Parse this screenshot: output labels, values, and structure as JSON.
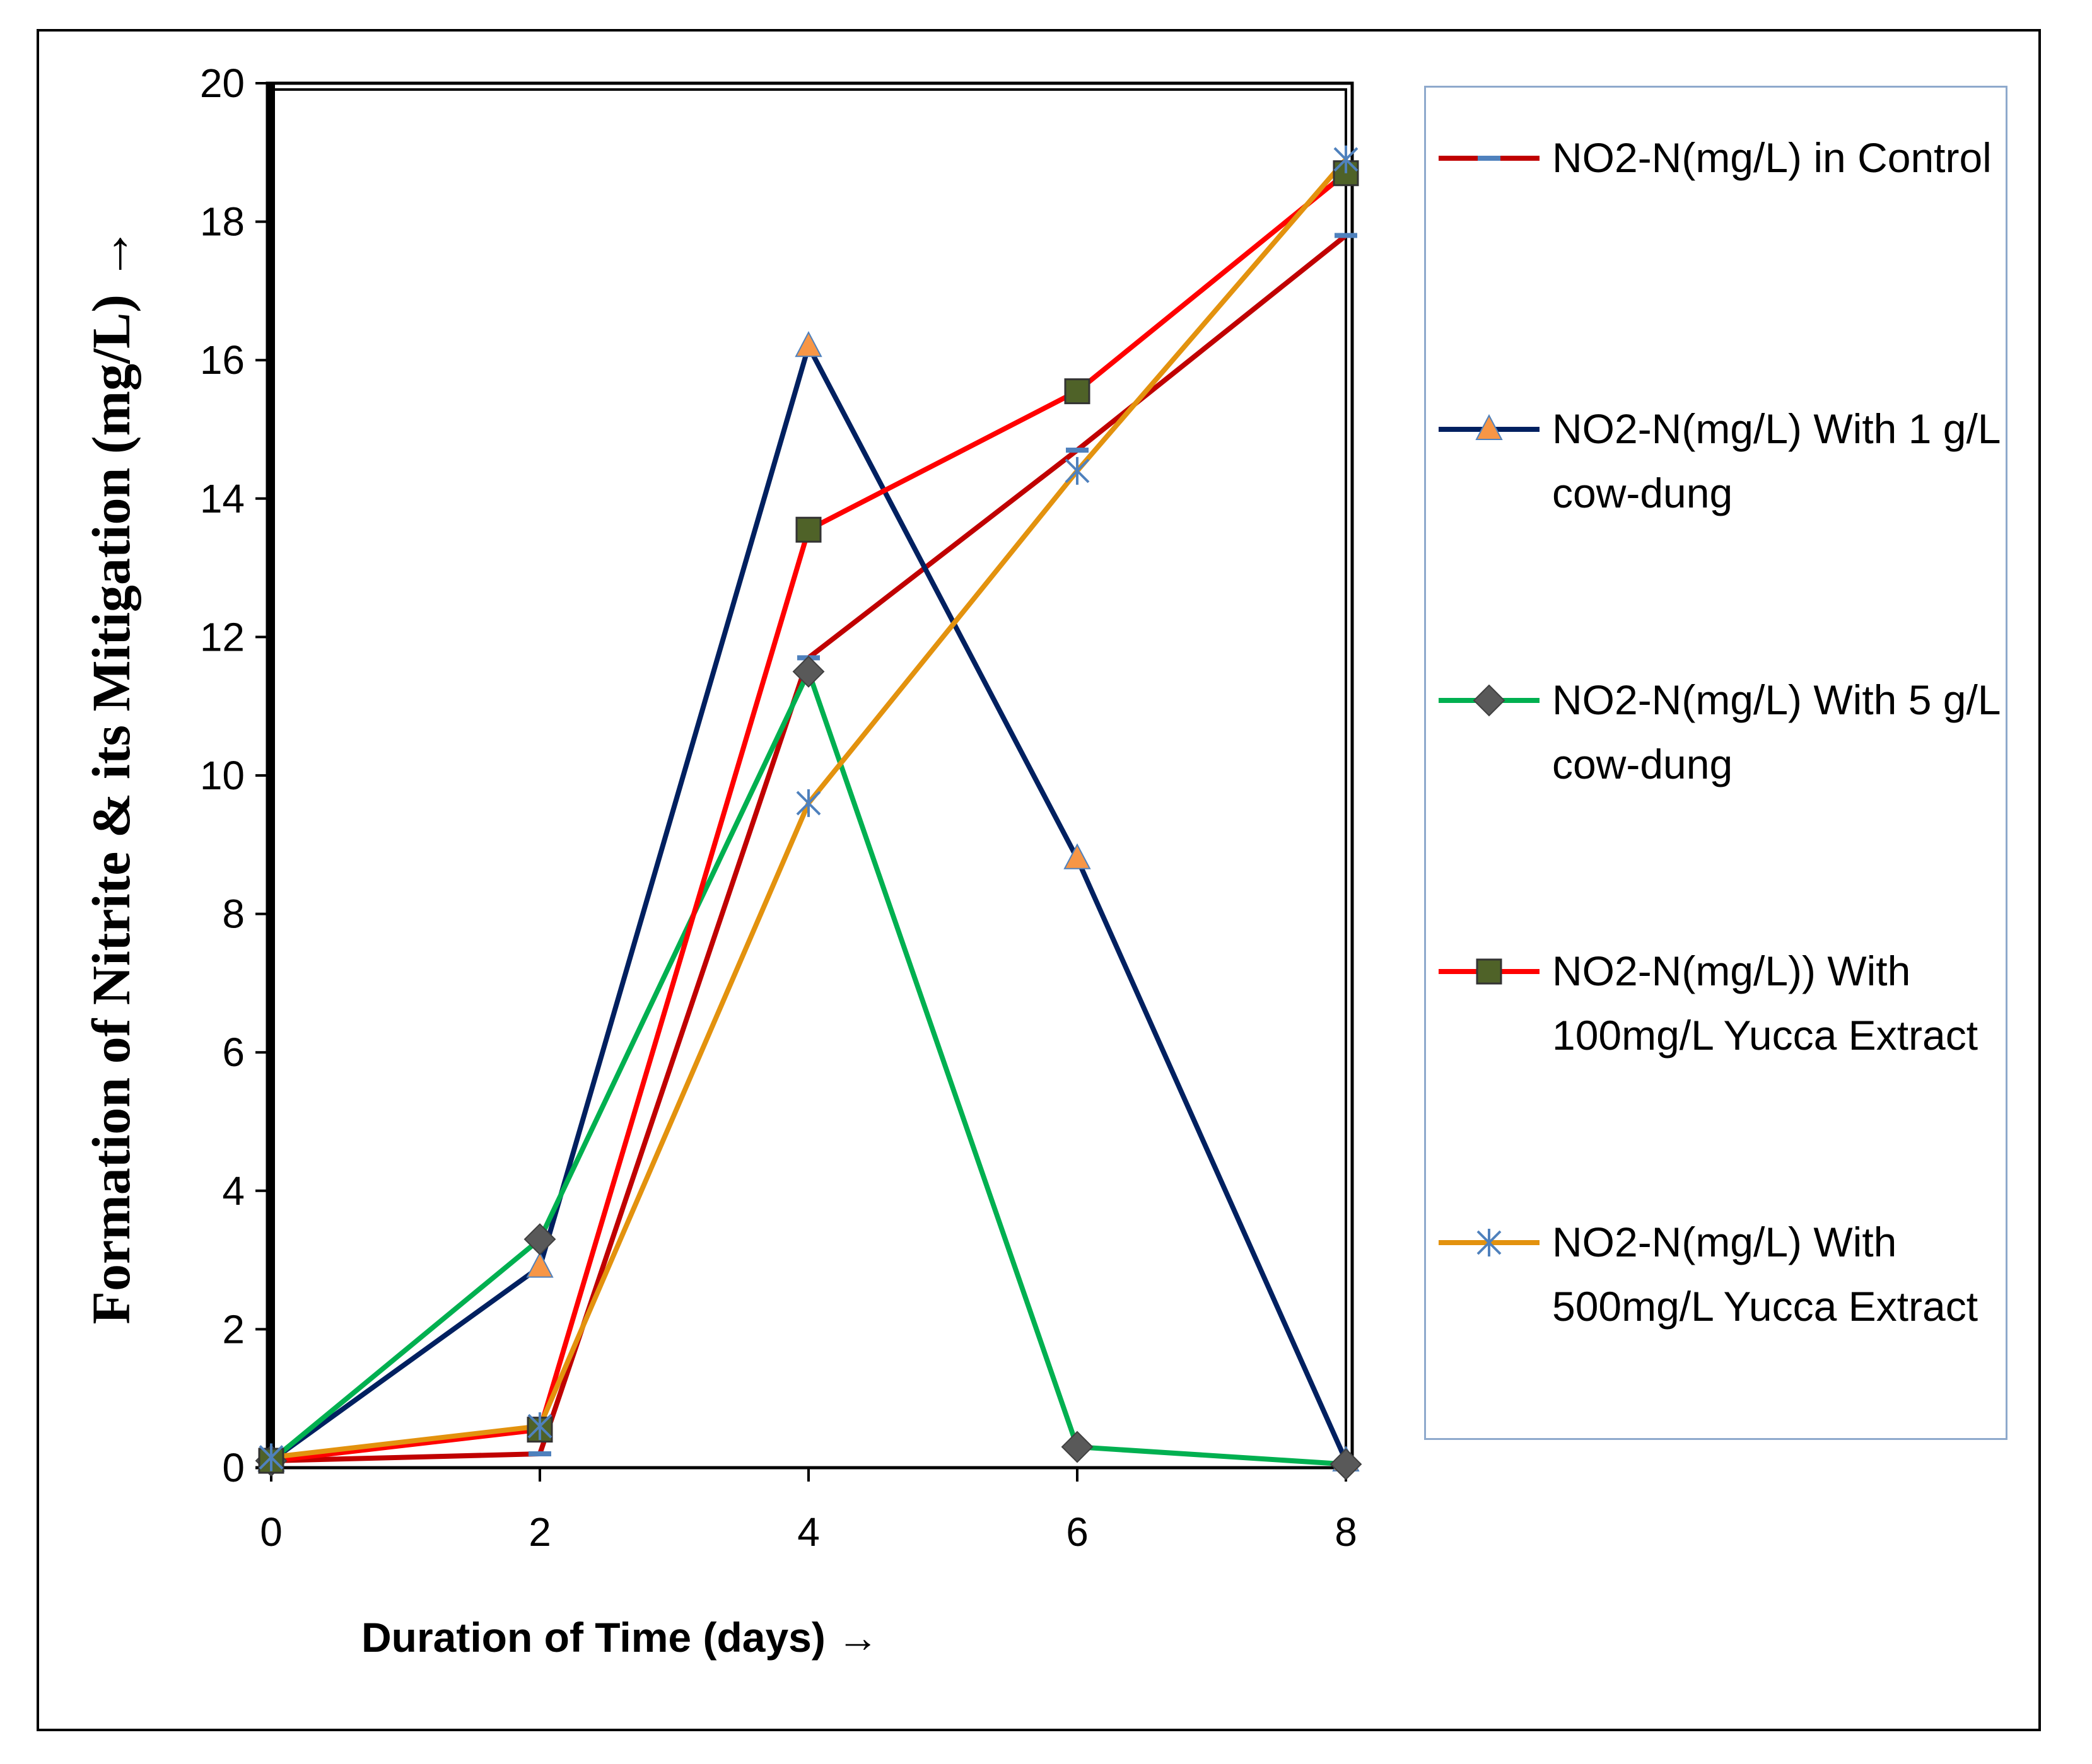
{
  "chart_data": {
    "type": "line",
    "title": "",
    "xlabel": "Duration of Time (days) →",
    "ylabel": "Formation of Nitrite & its Mitigation (mg/L) →",
    "x": [
      0,
      2,
      4,
      6,
      8
    ],
    "xticks": [
      "0",
      "2",
      "4",
      "6",
      "8"
    ],
    "yticks": [
      "0",
      "2",
      "4",
      "6",
      "8",
      "10",
      "12",
      "14",
      "16",
      "18",
      "20"
    ],
    "xlim": [
      0,
      8
    ],
    "ylim": [
      0,
      20
    ],
    "grid": false,
    "legend_position": "right",
    "series": [
      {
        "name": "NO2-N(mg/L) in Control",
        "values": [
          0.1,
          0.2,
          11.7,
          14.7,
          17.8
        ],
        "color": "#c00000",
        "marker": "dash",
        "marker_color": "#4f81bd"
      },
      {
        "name": "NO2-N(mg/L) With 1 g/L cow-dung",
        "values": [
          0.1,
          2.9,
          16.2,
          8.8,
          0.1
        ],
        "color": "#002060",
        "marker": "triangle",
        "marker_color": "#f79646"
      },
      {
        "name": "NO2-N(mg/L) With 5 g/L cow-dung",
        "values": [
          0.1,
          3.3,
          11.5,
          0.3,
          0.05
        ],
        "color": "#00b050",
        "marker": "diamond",
        "marker_color": "#595959"
      },
      {
        "name": "NO2-N(mg/L)) With 100mg/L Yucca Extract",
        "values": [
          0.1,
          0.55,
          13.55,
          15.55,
          18.7
        ],
        "color": "#ff0000",
        "marker": "square",
        "marker_color": "#4f6228"
      },
      {
        "name": "NO2-N(mg/L) With 500mg/L Yucca Extract",
        "values": [
          0.15,
          0.6,
          9.6,
          14.4,
          18.9
        ],
        "color": "#e3920e",
        "marker": "star",
        "marker_color": "#4f81bd"
      }
    ]
  }
}
